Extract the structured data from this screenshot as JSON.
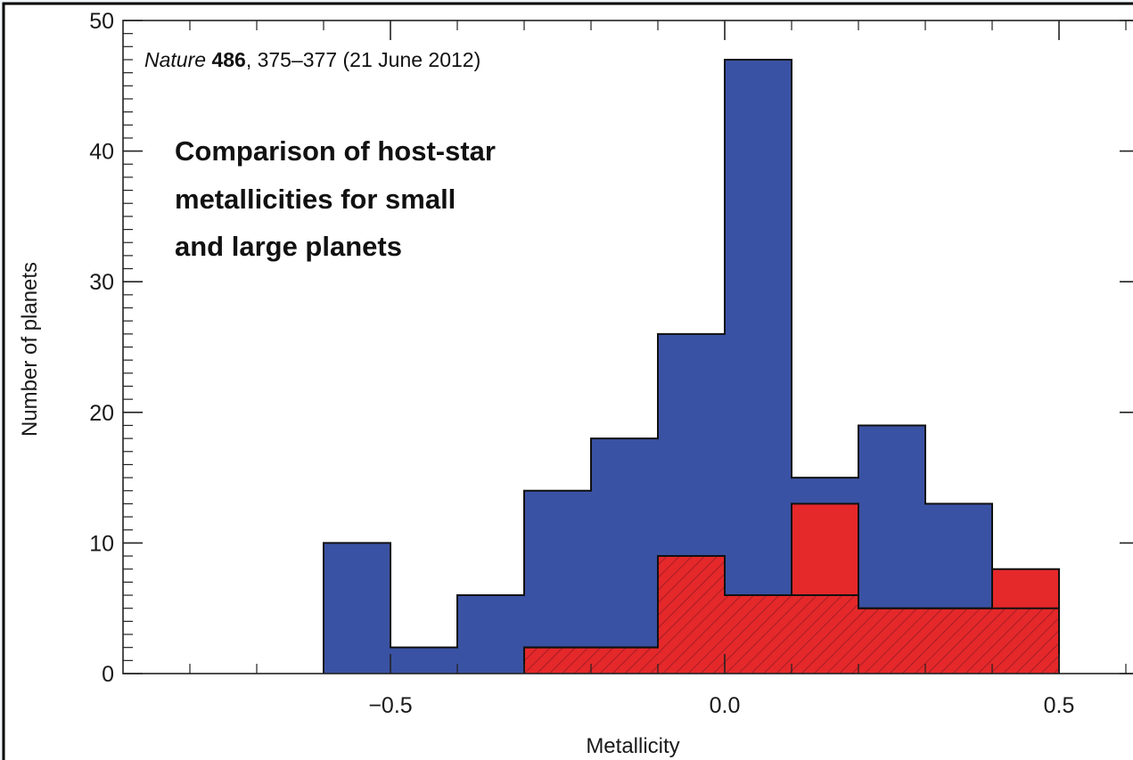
{
  "chart_data": {
    "type": "bar",
    "subtype": "histogram",
    "title_lines": [
      "Comparison of host-star",
      "metallicities for small",
      "and large planets"
    ],
    "citation": {
      "journal": "Nature",
      "volume": "486",
      "rest": ", 375–377 (21 June 2012)"
    },
    "xlabel": "Metallicity",
    "ylabel": "Number of planets",
    "xlim": [
      -0.9,
      0.62
    ],
    "ylim": [
      0,
      50
    ],
    "xticks": [
      -0.5,
      0.0,
      0.5
    ],
    "xtick_labels": [
      "−0.5",
      "0.0",
      "0.5"
    ],
    "yticks": [
      0,
      10,
      20,
      30,
      40,
      50
    ],
    "ytick_labels": [
      "0",
      "10",
      "20",
      "30",
      "40",
      "50"
    ],
    "bin_edges": [
      -0.6,
      -0.5,
      -0.4,
      -0.3,
      -0.2,
      -0.1,
      0.0,
      0.1,
      0.2,
      0.3,
      0.4,
      0.5
    ],
    "series": [
      {
        "values": [
          10,
          2,
          6,
          14,
          18,
          26,
          47,
          15,
          19,
          13,
          5
        ],
        "color": "#3a52a4",
        "style": "solid"
      },
      {
        "values": [
          0,
          0,
          0,
          2,
          2,
          9,
          6,
          13,
          5,
          5,
          8
        ],
        "color": "#e5282a",
        "style": "solid"
      },
      {
        "values": [
          0,
          0,
          0,
          2,
          2,
          9,
          6,
          6,
          5,
          5,
          5
        ],
        "color": "#e5282a",
        "style": "hatched"
      }
    ],
    "grid": false,
    "legend": "none"
  }
}
